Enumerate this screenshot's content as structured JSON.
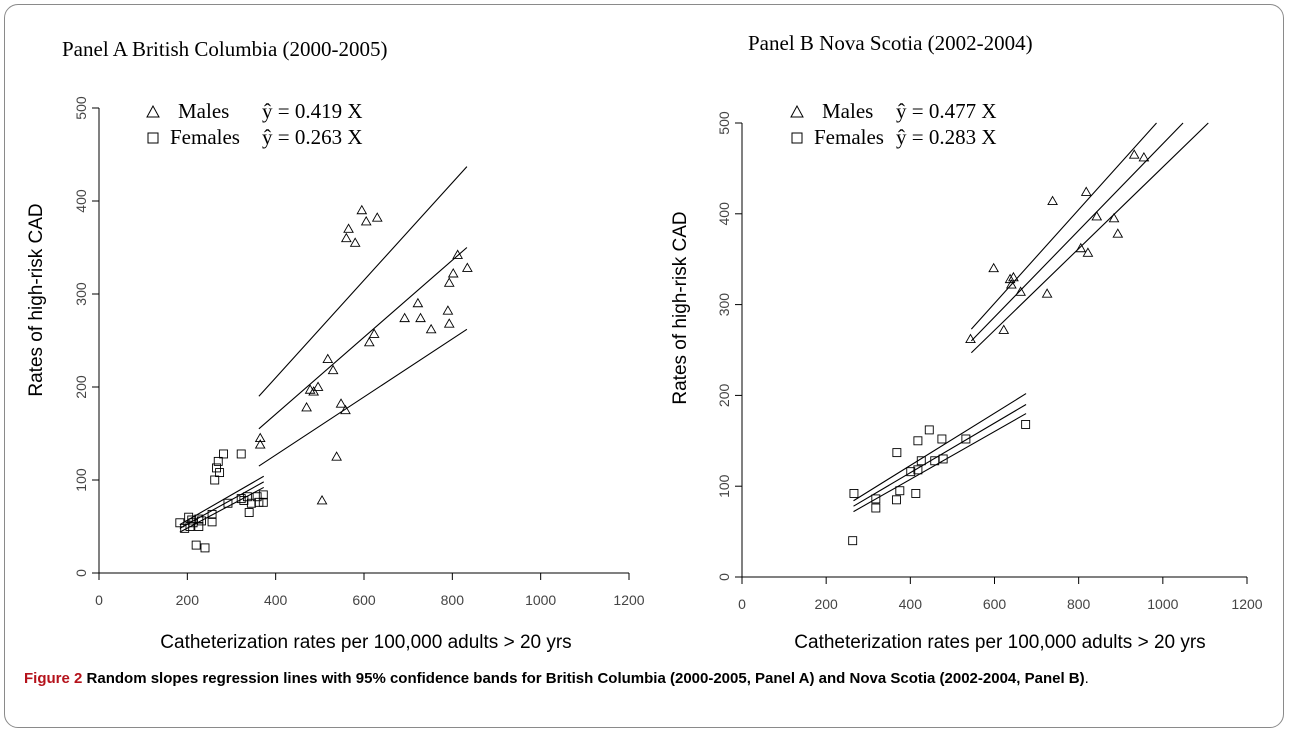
{
  "figure_caption": {
    "label": "Figure 2",
    "text": "Random slopes regression lines with 95% confidence bands for British Columbia (2000-2005, Panel A) and Nova Scotia (2002-2004, Panel B)",
    "end": "."
  },
  "chart_data": [
    {
      "type": "scatter",
      "title": "Panel A British Columbia (2000-2005)",
      "xlabel": "Catheterization rates per 100,000 adults > 20 yrs",
      "ylabel": "Rates of high-risk CAD",
      "xlim": [
        0,
        1200
      ],
      "ylim": [
        0,
        500
      ],
      "xticks": [
        0,
        200,
        400,
        600,
        800,
        1000,
        1200
      ],
      "yticks": [
        0,
        100,
        200,
        300,
        400,
        500
      ],
      "grid": false,
      "legend": "top-left",
      "series": [
        {
          "name": "Males",
          "marker": "triangle",
          "equation": "ŷ = 0.419 X",
          "slope": 0.419,
          "points": [
            [
              365,
              145
            ],
            [
              365,
              138
            ],
            [
              470,
              178
            ],
            [
              478,
              197
            ],
            [
              486,
              195
            ],
            [
              496,
              200
            ],
            [
              518,
              230
            ],
            [
              530,
              218
            ],
            [
              538,
              125
            ],
            [
              548,
              182
            ],
            [
              558,
              175
            ],
            [
              505,
              78
            ],
            [
              560,
              360
            ],
            [
              565,
              370
            ],
            [
              580,
              355
            ],
            [
              595,
              390
            ],
            [
              605,
              378
            ],
            [
              630,
              382
            ],
            [
              612,
              248
            ],
            [
              623,
              257
            ],
            [
              692,
              274
            ],
            [
              728,
              274
            ],
            [
              722,
              290
            ],
            [
              752,
              262
            ],
            [
              790,
              282
            ],
            [
              793,
              312
            ],
            [
              793,
              268
            ],
            [
              802,
              322
            ],
            [
              812,
              342
            ],
            [
              834,
              328
            ]
          ],
          "lines": [
            {
              "x": [
                362,
                833
              ],
              "y": [
                155,
                350
              ]
            },
            {
              "x": [
                362,
                833
              ],
              "y": [
                190,
                437
              ]
            },
            {
              "x": [
                362,
                833
              ],
              "y": [
                115,
                262
              ]
            }
          ]
        },
        {
          "name": "Females",
          "marker": "square",
          "equation": "ŷ = 0.263 X",
          "slope": 0.263,
          "points": [
            [
              183,
              54
            ],
            [
              194,
              48
            ],
            [
              203,
              60
            ],
            [
              206,
              50
            ],
            [
              213,
              54
            ],
            [
              220,
              30
            ],
            [
              226,
              50
            ],
            [
              232,
              56
            ],
            [
              240,
              27
            ],
            [
              256,
              63
            ],
            [
              256,
              55
            ],
            [
              262,
              100
            ],
            [
              266,
              113
            ],
            [
              270,
              120
            ],
            [
              273,
              108
            ],
            [
              282,
              128
            ],
            [
              292,
              75
            ],
            [
              322,
              128
            ],
            [
              322,
              80
            ],
            [
              328,
              78
            ],
            [
              336,
              82
            ],
            [
              340,
              65
            ],
            [
              345,
              75
            ],
            [
              358,
              82
            ],
            [
              362,
              76
            ],
            [
              372,
              84
            ],
            [
              372,
              76
            ],
            [
              226,
              58
            ],
            [
              210,
              57
            ]
          ],
          "lines": [
            {
              "x": [
                183,
                373
              ],
              "y": [
                48,
                98
              ]
            },
            {
              "x": [
                183,
                373
              ],
              "y": [
                52,
                104
              ]
            },
            {
              "x": [
                183,
                373
              ],
              "y": [
                44,
                92
              ]
            }
          ]
        }
      ]
    },
    {
      "type": "scatter",
      "title": "Panel B Nova Scotia (2002-2004)",
      "xlabel": "Catheterization rates per 100,000 adults > 20 yrs",
      "ylabel": "Rates of high-risk CAD",
      "xlim": [
        0,
        1200
      ],
      "ylim": [
        0,
        500
      ],
      "xticks": [
        0,
        200,
        400,
        600,
        800,
        1000,
        1200
      ],
      "yticks": [
        0,
        100,
        200,
        300,
        400,
        500
      ],
      "grid": false,
      "legend": "top-left",
      "series": [
        {
          "name": "Males",
          "marker": "triangle",
          "equation": "ŷ = 0.477 X",
          "slope": 0.477,
          "points": [
            [
              543,
              262
            ],
            [
              598,
              340
            ],
            [
              622,
              272
            ],
            [
              637,
              328
            ],
            [
              640,
              322
            ],
            [
              645,
              330
            ],
            [
              662,
              314
            ],
            [
              725,
              312
            ],
            [
              738,
              414
            ],
            [
              805,
              362
            ],
            [
              818,
              424
            ],
            [
              822,
              357
            ],
            [
              843,
              397
            ],
            [
              884,
              395
            ],
            [
              893,
              378
            ],
            [
              932,
              465
            ],
            [
              955,
              462
            ]
          ],
          "lines": [
            {
              "x": [
                545,
                1048
              ],
              "y": [
                260,
                500
              ]
            },
            {
              "x": [
                545,
                985
              ],
              "y": [
                273,
                500
              ]
            },
            {
              "x": [
                545,
                1108
              ],
              "y": [
                247,
                500
              ]
            }
          ]
        },
        {
          "name": "Females",
          "marker": "square",
          "equation": "ŷ = 0.283 X",
          "slope": 0.283,
          "points": [
            [
              263,
              40
            ],
            [
              266,
              92
            ],
            [
              318,
              76
            ],
            [
              318,
              86
            ],
            [
              367,
              85
            ],
            [
              368,
              137
            ],
            [
              375,
              95
            ],
            [
              401,
              116
            ],
            [
              413,
              92
            ],
            [
              418,
              150
            ],
            [
              418,
              118
            ],
            [
              426,
              128
            ],
            [
              445,
              162
            ],
            [
              458,
              128
            ],
            [
              475,
              152
            ],
            [
              478,
              130
            ],
            [
              532,
              152
            ],
            [
              674,
              168
            ]
          ],
          "lines": [
            {
              "x": [
                265,
                675
              ],
              "y": [
                78,
                190
              ]
            },
            {
              "x": [
                265,
                675
              ],
              "y": [
                84,
                202
              ]
            },
            {
              "x": [
                265,
                675
              ],
              "y": [
                72,
                180
              ]
            }
          ]
        }
      ]
    }
  ]
}
